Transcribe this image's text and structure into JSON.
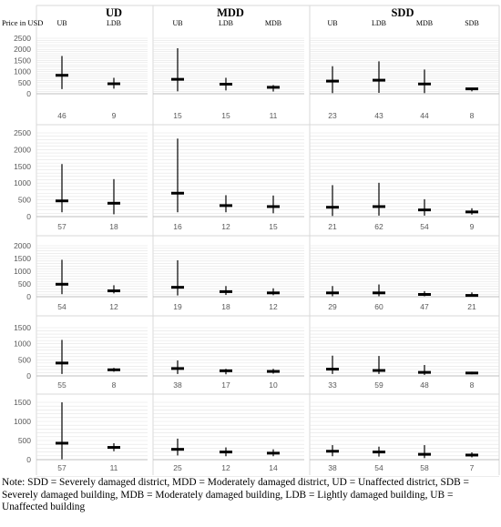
{
  "figure": {
    "y_axis_title": "Price in USD",
    "district_headers": [
      "UD",
      "MDD",
      "SDD"
    ],
    "note": "Note: SDD = Severely damaged district, MDD = Moderately damaged district, UD = Unaffected district, SDB = Severely damaged building, MDB = Moderately damaged building, LDB = Lightly damaged building, UB = Unaffected building"
  },
  "colors": {
    "bar": "#000000",
    "grid": "#d9d9d9",
    "axis": "#bfbfbf",
    "text": "#595959"
  },
  "chart_data": {
    "type": "box",
    "description_of_marks": "each mark: vertical whisker from min to max, horizontal tick at median; number below = sample size (n)",
    "panels": [
      {
        "row": 1,
        "yticks": [
          0,
          500,
          1000,
          1500,
          2000,
          2500
        ],
        "ylim": [
          0,
          2500
        ],
        "columns": [
          {
            "district": "UD",
            "categories": [
              "UB",
              "LDB"
            ],
            "min": [
              210,
              230
            ],
            "median": [
              830,
              450
            ],
            "max": [
              1700,
              720
            ],
            "n": [
              "46",
              "9"
            ]
          },
          {
            "district": "MDD",
            "categories": [
              "UB",
              "LDB",
              "MDB"
            ],
            "min": [
              110,
              150,
              100
            ],
            "median": [
              650,
              430,
              290
            ],
            "max": [
              2050,
              720,
              390
            ],
            "n": [
              "15",
              "15",
              "11"
            ]
          },
          {
            "district": "SDD",
            "categories": [
              "UB",
              "LDB",
              "MDB",
              "SDB"
            ],
            "min": [
              30,
              40,
              30,
              110
            ],
            "median": [
              570,
              610,
              440,
              220
            ],
            "max": [
              1240,
              1460,
              1090,
              270
            ],
            "n": [
              "23",
              "43",
              "44",
              "8"
            ]
          }
        ]
      },
      {
        "row": 2,
        "yticks": [
          0,
          500,
          1000,
          1500,
          2000,
          2500
        ],
        "ylim": [
          0,
          2500
        ],
        "columns": [
          {
            "district": "UD",
            "min": [
              130,
              70
            ],
            "median": [
              470,
              400
            ],
            "max": [
              1570,
              1120
            ],
            "n": [
              "57",
              "18"
            ]
          },
          {
            "district": "MDD",
            "min": [
              130,
              130,
              100
            ],
            "median": [
              700,
              330,
              300
            ],
            "max": [
              2330,
              640,
              630
            ],
            "n": [
              "16",
              "12",
              "15"
            ]
          },
          {
            "district": "SDD",
            "min": [
              20,
              30,
              30,
              60
            ],
            "median": [
              280,
              300,
              200,
              140
            ],
            "max": [
              940,
              1010,
              520,
              250
            ],
            "n": [
              "21",
              "62",
              "54",
              "9"
            ]
          }
        ]
      },
      {
        "row": 3,
        "yticks": [
          0,
          500,
          1000,
          1500,
          2000
        ],
        "ylim": [
          0,
          2000
        ],
        "columns": [
          {
            "district": "UD",
            "min": [
              100,
              130
            ],
            "median": [
              490,
              230
            ],
            "max": [
              1450,
              450
            ],
            "n": [
              "54",
              "12"
            ]
          },
          {
            "district": "MDD",
            "min": [
              50,
              70,
              60
            ],
            "median": [
              370,
              200,
              150
            ],
            "max": [
              1430,
              420,
              330
            ],
            "n": [
              "19",
              "18",
              "12"
            ]
          },
          {
            "district": "SDD",
            "min": [
              20,
              20,
              20,
              10
            ],
            "median": [
              150,
              150,
              90,
              50
            ],
            "max": [
              420,
              480,
              220,
              170
            ],
            "n": [
              "29",
              "60",
              "47",
              "21"
            ]
          }
        ]
      },
      {
        "row": 4,
        "yticks": [
          0,
          500,
          1000,
          1500
        ],
        "ylim": [
          0,
          1500
        ],
        "columns": [
          {
            "district": "UD",
            "min": [
              60,
              130
            ],
            "median": [
              400,
              190
            ],
            "max": [
              1120,
              250
            ],
            "n": [
              "55",
              "8"
            ]
          },
          {
            "district": "MDD",
            "min": [
              60,
              50,
              70
            ],
            "median": [
              230,
              160,
              140
            ],
            "max": [
              480,
              220,
              220
            ],
            "n": [
              "38",
              "17",
              "10"
            ]
          },
          {
            "district": "SDD",
            "min": [
              60,
              60,
              30,
              50
            ],
            "median": [
              210,
              170,
              110,
              90
            ],
            "max": [
              630,
              620,
              340,
              130
            ],
            "n": [
              "33",
              "59",
              "48",
              "8"
            ]
          }
        ]
      },
      {
        "row": 5,
        "yticks": [
          0,
          500,
          1000,
          1500
        ],
        "ylim": [
          0,
          1500
        ],
        "columns": [
          {
            "district": "UD",
            "min": [
              10,
              220
            ],
            "median": [
              430,
              320
            ],
            "max": [
              1500,
              430
            ],
            "n": [
              "57",
              "11"
            ]
          },
          {
            "district": "MDD",
            "min": [
              110,
              90,
              90
            ],
            "median": [
              270,
              200,
              170
            ],
            "max": [
              550,
              320,
              270
            ],
            "n": [
              "25",
              "12",
              "14"
            ]
          },
          {
            "district": "SDD",
            "min": [
              90,
              80,
              40,
              60
            ],
            "median": [
              220,
              200,
              140,
              120
            ],
            "max": [
              380,
              340,
              380,
              190
            ],
            "n": [
              "38",
              "54",
              "58",
              "7"
            ]
          }
        ]
      }
    ]
  }
}
